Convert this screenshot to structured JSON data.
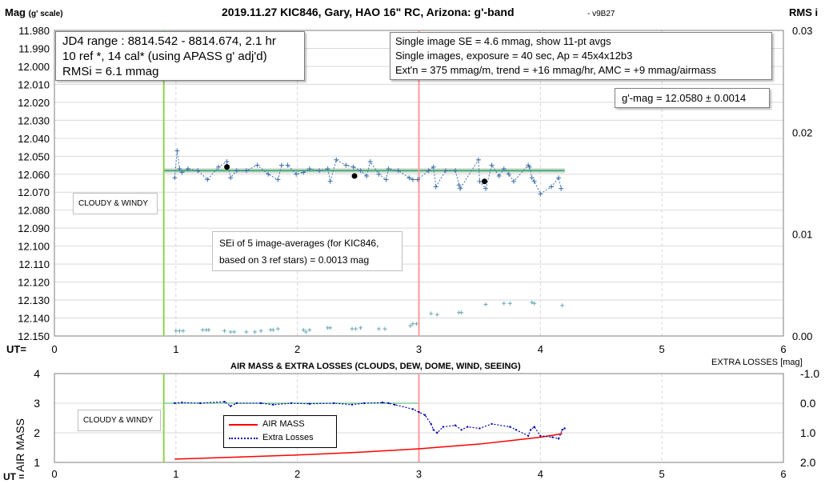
{
  "chart_data": [
    {
      "type": "scatter",
      "title": "2019.11.27 KIC846, Gary, HAO 16\" RC, Arizona: g'-band",
      "version": "- v9B27",
      "ylabel_main": "Mag",
      "ylabel_scale": "(g' scale)",
      "ylabel_right": "RMS i",
      "xlabel": "UT=",
      "x_ticks": [
        "0",
        "1",
        "2",
        "3",
        "4",
        "5",
        "6"
      ],
      "y_ticks": [
        "11.980",
        "11.990",
        "12.000",
        "12.010",
        "12.020",
        "12.030",
        "12.040",
        "12.050",
        "12.060",
        "12.070",
        "12.080",
        "12.090",
        "12.100",
        "12.110",
        "12.120",
        "12.130",
        "12.140",
        "12.150"
      ],
      "y_right_ticks": [
        "0.00",
        "0.01",
        "0.02",
        "0.03"
      ],
      "xlim": [
        0,
        6
      ],
      "ylim": [
        11.98,
        12.15
      ],
      "y_right_lim": [
        0,
        0.03
      ],
      "grid": true,
      "series": [
        {
          "name": "",
          "color": "#3d6fa8",
          "x": [
            0.99,
            1.01,
            1.03,
            1.05,
            1.1,
            1.18,
            1.26,
            1.35,
            1.42,
            1.45,
            1.5,
            1.58,
            1.67,
            1.76,
            1.84,
            1.87,
            1.92,
            1.99,
            2.05,
            2.1,
            2.18,
            2.25,
            2.27,
            2.32,
            2.4,
            2.46,
            2.52,
            2.57,
            2.6,
            2.67,
            2.73,
            2.75,
            2.83,
            2.92,
            2.95,
            2.99,
            3.08,
            3.12,
            3.14,
            3.22,
            3.3,
            3.33,
            3.34,
            3.49,
            3.5,
            3.55,
            3.6,
            3.66,
            3.7,
            3.74,
            3.78,
            3.9,
            3.91,
            3.93,
            3.95,
            4.0,
            4.09,
            4.15,
            4.17
          ],
          "y": [
            12.062,
            12.047,
            12.057,
            12.059,
            12.057,
            12.058,
            12.063,
            12.056,
            12.053,
            12.062,
            12.058,
            12.058,
            12.055,
            12.06,
            12.063,
            12.055,
            12.055,
            12.06,
            12.059,
            12.057,
            12.058,
            12.057,
            12.064,
            12.052,
            12.055,
            12.056,
            12.058,
            12.061,
            12.053,
            12.06,
            12.063,
            12.057,
            12.058,
            12.062,
            12.063,
            12.063,
            12.058,
            12.056,
            12.067,
            12.058,
            12.058,
            12.066,
            12.068,
            12.052,
            12.064,
            12.068,
            12.055,
            12.061,
            12.057,
            12.06,
            12.064,
            12.055,
            12.056,
            12.062,
            12.064,
            12.071,
            12.067,
            12.062,
            12.068
          ]
        },
        {
          "name": "",
          "color": "#000000",
          "x": [
            1.42,
            2.47,
            3.54
          ],
          "y": [
            12.056,
            12.061,
            12.064
          ]
        },
        {
          "name": "",
          "color": "#6aa8b5",
          "axis": "right",
          "x": [
            1.0,
            1.03,
            1.06,
            1.22,
            1.25,
            1.27,
            1.4,
            1.45,
            1.48,
            1.58,
            1.65,
            1.7,
            1.78,
            1.8,
            1.84,
            2.05,
            2.07,
            2.1,
            2.25,
            2.27,
            2.45,
            2.48,
            2.52,
            2.67,
            2.72,
            2.93,
            2.95,
            2.98,
            3.1,
            3.15,
            3.33,
            3.35,
            3.55,
            3.7,
            3.75,
            3.93,
            3.95,
            4.18
          ],
          "y": [
            0.0005,
            0.0005,
            0.0005,
            0.0006,
            0.0006,
            0.0006,
            0.0005,
            0.0004,
            0.0004,
            0.0004,
            0.0004,
            0.0005,
            0.0006,
            0.0006,
            0.0007,
            0.0006,
            0.0004,
            0.0006,
            0.0008,
            0.0008,
            0.0007,
            0.0007,
            0.0008,
            0.0007,
            0.0007,
            0.001,
            0.0012,
            0.0012,
            0.0022,
            0.0021,
            0.0023,
            0.0023,
            0.0031,
            0.0032,
            0.0032,
            0.0033,
            0.0032,
            0.003
          ]
        }
      ],
      "reference_lines": [
        {
          "type": "horizontal",
          "y": 12.058,
          "color": "#3cb371"
        },
        {
          "type": "vertical",
          "x": 0.9,
          "color": "#92d050"
        },
        {
          "type": "vertical",
          "x": 3.0,
          "color": "#ff9999"
        }
      ],
      "annotations": {
        "info_left": [
          "JD4 range : 8814.542 - 8814.674,  2.1  hr",
          "10 ref *, 14 cal* (using APASS g' adj'd)",
          "RMSi = 6.1 mmag"
        ],
        "info_right": [
          "Single image SE = 4.6 mmag, show  11-pt avgs",
          "Single images, exposure = 40 sec, Ap = 45x4x12b3",
          "Ext'n = 375 mmag/m, trend =  +16 mmag/hr, AMC = +9 mmag/airmass"
        ],
        "gmag": "g'-mag = 12.0580 ± 0.0014",
        "cloudy": "CLOUDY & WINDY",
        "sei": [
          "SEi of 5 image-averages (for KIC846,",
          "based on 3 ref stars) = 0.0013 mag"
        ]
      }
    },
    {
      "type": "line",
      "title": "AIR MASS & EXTRA LOSSES (CLOUDS, DEW, DOME, WIND, SEEING)",
      "ylabel": "AIR MASS",
      "ylabel_right": "EXTRA LOSSES [mag]",
      "xlabel": "UT =",
      "x_ticks": [
        "0",
        "1",
        "2",
        "3",
        "4",
        "5",
        "6"
      ],
      "y_ticks": [
        "1",
        "2",
        "3",
        "4"
      ],
      "y_right_ticks": [
        "-1.0",
        "0.0",
        "1.0",
        "2.0"
      ],
      "xlim": [
        0,
        6
      ],
      "ylim": [
        1,
        4
      ],
      "y_right_lim": [
        -1,
        2
      ],
      "grid": true,
      "legend_position": "inside-left",
      "series": [
        {
          "name": "AIR MASS",
          "color": "#ff0000",
          "style": "solid",
          "x": [
            0.99,
            1.5,
            2.0,
            2.5,
            3.0,
            3.5,
            4.0,
            4.18
          ],
          "y": [
            1.11,
            1.18,
            1.25,
            1.34,
            1.46,
            1.62,
            1.85,
            1.97
          ]
        },
        {
          "name": "Extra Losses",
          "color": "#0000aa",
          "style": "dotted",
          "axis": "right",
          "x": [
            0.99,
            1.05,
            1.2,
            1.4,
            1.45,
            1.5,
            1.7,
            1.8,
            1.95,
            2.1,
            2.3,
            2.45,
            2.55,
            2.7,
            2.75,
            2.8,
            2.95,
            3.0,
            3.05,
            3.1,
            3.12,
            3.15,
            3.2,
            3.3,
            3.35,
            3.4,
            3.5,
            3.6,
            3.75,
            3.8,
            3.9,
            3.92,
            3.95,
            4.0,
            4.1,
            4.15,
            4.18,
            4.2
          ],
          "y": [
            0.0,
            -0.02,
            0.0,
            -0.05,
            0.1,
            0.0,
            0.0,
            0.05,
            0.0,
            0.02,
            0.0,
            0.05,
            0.0,
            -0.02,
            0.0,
            0.05,
            0.2,
            0.3,
            0.4,
            0.7,
            0.9,
            1.0,
            0.8,
            0.75,
            0.9,
            0.8,
            0.85,
            0.7,
            0.8,
            0.9,
            1.1,
            0.9,
            0.8,
            1.1,
            1.15,
            1.2,
            0.9,
            0.85
          ]
        }
      ],
      "reference_lines": [
        {
          "type": "horizontal",
          "y_right": 0.0,
          "color": "#3cb371"
        },
        {
          "type": "vertical",
          "x": 0.9,
          "color": "#92d050"
        },
        {
          "type": "vertical",
          "x": 3.0,
          "color": "#ff9999"
        }
      ],
      "annotations": {
        "cloudy": "CLOUDY & WINDY"
      }
    }
  ]
}
